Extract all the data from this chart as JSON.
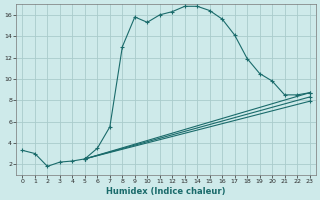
{
  "xlabel": "Humidex (Indice chaleur)",
  "bg_color": "#ceeaea",
  "grid_color": "#aacccc",
  "line_color": "#1a6b6b",
  "xlim": [
    -0.5,
    23.5
  ],
  "ylim": [
    1,
    17
  ],
  "xticks": [
    0,
    1,
    2,
    3,
    4,
    5,
    6,
    7,
    8,
    9,
    10,
    11,
    12,
    13,
    14,
    15,
    16,
    17,
    18,
    19,
    20,
    21,
    22,
    23
  ],
  "yticks": [
    2,
    4,
    6,
    8,
    10,
    12,
    14,
    16
  ],
  "line1_x": [
    0,
    1,
    2,
    3,
    4,
    5,
    6,
    7,
    8,
    9,
    10,
    11,
    12,
    13,
    14,
    15,
    16,
    17,
    18,
    19,
    20,
    21,
    22,
    23
  ],
  "line1_y": [
    3.3,
    3.0,
    1.8,
    2.2,
    2.3,
    2.5,
    3.5,
    5.5,
    13.0,
    15.8,
    15.3,
    16.0,
    16.3,
    16.8,
    16.8,
    16.4,
    15.6,
    14.1,
    11.9,
    10.5,
    9.8,
    8.5,
    8.5,
    8.7
  ],
  "line2_x": [
    5,
    23
  ],
  "line2_y": [
    2.5,
    8.7
  ],
  "line3_x": [
    5,
    23
  ],
  "line3_y": [
    2.5,
    8.3
  ],
  "line4_x": [
    5,
    23
  ],
  "line4_y": [
    2.5,
    7.9
  ]
}
